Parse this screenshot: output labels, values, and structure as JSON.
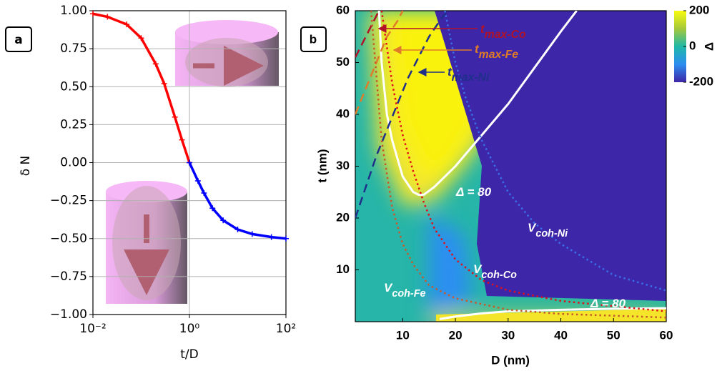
{
  "chart_data": [
    {
      "type": "line",
      "panel_label": "a",
      "xlabel": "t/D",
      "ylabel": "δ N",
      "log_x": true,
      "xlim": [
        0.01,
        100
      ],
      "xticks": [
        {
          "value": 0.01,
          "label": "10⁻²"
        },
        {
          "value": 1,
          "label": "10⁰"
        },
        {
          "value": 100,
          "label": "10²"
        }
      ],
      "ylim": [
        -1,
        1
      ],
      "yticks": [
        {
          "value": -1,
          "label": "−1.00"
        },
        {
          "value": -0.75,
          "label": "−0.75"
        },
        {
          "value": -0.5,
          "label": "−0.50"
        },
        {
          "value": -0.25,
          "label": "−0.25"
        },
        {
          "value": 0,
          "label": "0.00"
        },
        {
          "value": 0.25,
          "label": "0.25"
        },
        {
          "value": 0.5,
          "label": "0.50"
        },
        {
          "value": 0.75,
          "label": "0.75"
        },
        {
          "value": 1,
          "label": "1.00"
        }
      ],
      "grid": true,
      "series": [
        {
          "color": "#ff0000",
          "x": [
            0.01,
            0.02,
            0.05,
            0.1,
            0.2,
            0.3,
            0.5,
            0.7,
            1
          ],
          "values": [
            0.98,
            0.96,
            0.91,
            0.82,
            0.65,
            0.52,
            0.3,
            0.15,
            0.0
          ]
        },
        {
          "color": "#0000ff",
          "x": [
            1,
            1.5,
            2,
            3,
            5,
            10,
            20,
            50,
            100
          ],
          "values": [
            0.0,
            -0.12,
            -0.2,
            -0.3,
            -0.38,
            -0.44,
            -0.47,
            -0.49,
            -0.5
          ]
        }
      ]
    },
    {
      "type": "contour",
      "panel_label": "b",
      "xlabel": "D (nm)",
      "ylabel": "t (nm)",
      "xlim": [
        1,
        60
      ],
      "xticks": [
        10,
        20,
        30,
        40,
        50,
        60
      ],
      "ylim": [
        0,
        60
      ],
      "yticks": [
        10,
        20,
        30,
        40,
        50,
        60
      ],
      "series": [
        {
          "color": "#ffffff",
          "style": "solid",
          "x": [
            5.5,
            6,
            7,
            8,
            10,
            12,
            13,
            14,
            16,
            20,
            25,
            30,
            35,
            40,
            43
          ],
          "values": [
            60,
            50,
            40,
            35,
            28,
            25,
            24.5,
            24.5,
            26,
            30,
            36,
            42,
            49,
            56,
            60
          ]
        },
        {
          "color": "#ffffff",
          "style": "solid",
          "x": [
            17,
            20,
            25,
            30,
            40,
            50,
            60
          ],
          "values": [
            0.5,
            1,
            1.6,
            2,
            2.3,
            2.5,
            2.6
          ]
        },
        {
          "color": "#b0122a",
          "style": "dashed",
          "x": [
            1,
            2,
            3,
            4,
            5,
            5.5
          ],
          "values": [
            51,
            53,
            55,
            57,
            59,
            60
          ]
        },
        {
          "color": "#e07b2a",
          "style": "dashed",
          "x": [
            1,
            3,
            5,
            7,
            9,
            10
          ],
          "values": [
            40,
            45,
            50,
            55,
            58,
            60
          ]
        },
        {
          "color": "#1f2f8a",
          "style": "dashed",
          "x": [
            1,
            3,
            5,
            7,
            9,
            11,
            13,
            15,
            17,
            18.5
          ],
          "values": [
            20,
            26,
            32,
            37,
            42,
            47,
            51,
            55,
            58,
            60
          ]
        },
        {
          "color": "#e0101a",
          "style": "dotted",
          "x": [
            6,
            8,
            10,
            12,
            14,
            16,
            20,
            25,
            30,
            40,
            50,
            60
          ],
          "values": [
            60,
            46,
            36,
            29,
            23,
            18,
            12,
            8,
            6,
            4,
            3,
            2
          ]
        },
        {
          "color": "#c85a2a",
          "style": "dotted",
          "x": [
            4,
            6,
            8,
            10,
            12,
            15,
            20,
            30,
            40,
            60
          ],
          "values": [
            60,
            35,
            22,
            15,
            11,
            7,
            4.5,
            2.3,
            1.5,
            0.8
          ]
        },
        {
          "color": "#3a6ee8",
          "style": "dotted",
          "x": [
            18,
            20,
            22,
            25,
            28,
            30,
            35,
            40,
            50,
            60
          ],
          "values": [
            60,
            50,
            43,
            35,
            29,
            25,
            19,
            15,
            9,
            6
          ]
        }
      ],
      "annotations": [
        {
          "base": "t",
          "sub": "max-Co",
          "color": "#b0122a"
        },
        {
          "base": "t",
          "sub": "max-Fe",
          "color": "#e07b2a"
        },
        {
          "base": "t",
          "sub": "max-Ni",
          "color": "#1f2f8a"
        },
        {
          "base": "V",
          "sub": "coh-Ni",
          "color": "#ffffff"
        },
        {
          "base": "V",
          "sub": "coh-Co",
          "color": "#ffffff"
        },
        {
          "base": "V",
          "sub": "coh-Fe",
          "color": "#ffffff"
        },
        {
          "base": "Δ = 80",
          "color": "#ffffff"
        },
        {
          "base": "Δ = 80",
          "color": "#ffffff"
        }
      ],
      "colorbar": {
        "lim": [
          -200,
          200
        ],
        "ticks": [
          -200,
          0,
          200
        ],
        "label": "Δ"
      }
    }
  ]
}
